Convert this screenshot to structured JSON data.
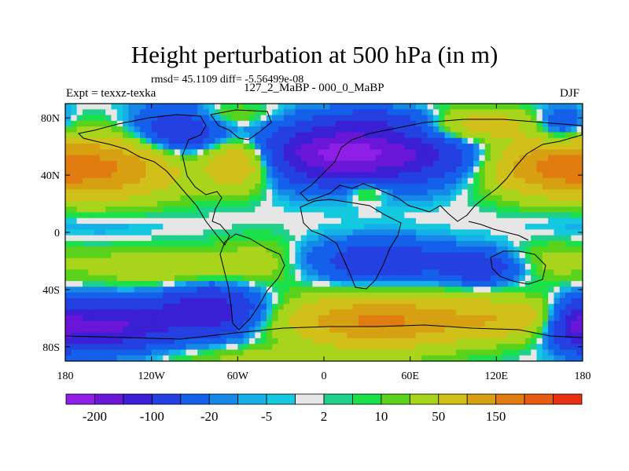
{
  "chart_data": {
    "type": "heatmap",
    "title": "Height perturbation at 500 hPa (in m)",
    "stats_label": "rmsd= 45.1109 diff= -5.56499e-08",
    "left_label": "Expt = texxz-texka",
    "center_label": "127_2_MaBP - 000_0_MaBP",
    "right_label": "DJF",
    "x_ticks": [
      "180",
      "120W",
      "60W",
      "0",
      "60E",
      "120E",
      "180"
    ],
    "y_ticks": [
      "80N",
      "40N",
      "0",
      "40S",
      "80S"
    ],
    "xlim": [
      -180,
      180
    ],
    "ylim": [
      -90,
      90
    ],
    "colorbar": {
      "colors": [
        "#8f1fe6",
        "#6a16d8",
        "#3a1fd4",
        "#2440e0",
        "#1560ea",
        "#1588e8",
        "#16b0e8",
        "#14c8e0",
        "#e6e6e6",
        "#1ed08a",
        "#1ce04a",
        "#5ad21c",
        "#a8d41c",
        "#d2c01a",
        "#d6a012",
        "#e07c10",
        "#e65a12",
        "#ea3010"
      ],
      "labels": [
        "-200",
        "-100",
        "-20",
        "-5",
        "2",
        "10",
        "50",
        "150"
      ]
    },
    "field_centers": [
      {
        "lon": -150,
        "lat": 45,
        "value": 140,
        "sx": 35,
        "sy": 15
      },
      {
        "lon": -100,
        "lat": 72,
        "value": -110,
        "sx": 22,
        "sy": 12
      },
      {
        "lon": -60,
        "lat": 48,
        "value": 110,
        "sx": 16,
        "sy": 12
      },
      {
        "lon": -75,
        "lat": 82,
        "value": 40,
        "sx": 25,
        "sy": 6
      },
      {
        "lon": 10,
        "lat": 55,
        "value": -210,
        "sx": 35,
        "sy": 14
      },
      {
        "lon": 70,
        "lat": 55,
        "value": -90,
        "sx": 30,
        "sy": 14
      },
      {
        "lon": 50,
        "lat": 78,
        "value": -60,
        "sx": 35,
        "sy": 6
      },
      {
        "lon": 100,
        "lat": 75,
        "value": 100,
        "sx": 30,
        "sy": 8
      },
      {
        "lon": 155,
        "lat": 45,
        "value": 130,
        "sx": 30,
        "sy": 13
      },
      {
        "lon": 165,
        "lat": 75,
        "value": -60,
        "sx": 12,
        "sy": 9
      },
      {
        "lon": 30,
        "lat": 30,
        "value": 45,
        "sx": 10,
        "sy": 6
      },
      {
        "lon": -110,
        "lat": -25,
        "value": 45,
        "sx": 40,
        "sy": 10
      },
      {
        "lon": -40,
        "lat": -20,
        "value": 25,
        "sx": 20,
        "sy": 12
      },
      {
        "lon": 40,
        "lat": -20,
        "value": -90,
        "sx": 35,
        "sy": 10
      },
      {
        "lon": 110,
        "lat": -25,
        "value": -80,
        "sx": 18,
        "sy": 8
      },
      {
        "lon": 160,
        "lat": -20,
        "value": 25,
        "sx": 20,
        "sy": 10
      },
      {
        "lon": 170,
        "lat": 5,
        "value": -8,
        "sx": 25,
        "sy": 8
      },
      {
        "lon": -150,
        "lat": -65,
        "value": -160,
        "sx": 30,
        "sy": 12
      },
      {
        "lon": -80,
        "lat": -55,
        "value": -140,
        "sx": 25,
        "sy": 12
      },
      {
        "lon": 40,
        "lat": -62,
        "value": 160,
        "sx": 45,
        "sy": 12
      },
      {
        "lon": 130,
        "lat": -60,
        "value": 75,
        "sx": 28,
        "sy": 10
      },
      {
        "lon": 175,
        "lat": -65,
        "value": -100,
        "sx": 12,
        "sy": 12
      },
      {
        "lon": -30,
        "lat": -88,
        "value": 30,
        "sx": 60,
        "sy": 6
      },
      {
        "lon": -140,
        "lat": 5,
        "value": -8,
        "sx": 25,
        "sy": 8
      }
    ]
  }
}
